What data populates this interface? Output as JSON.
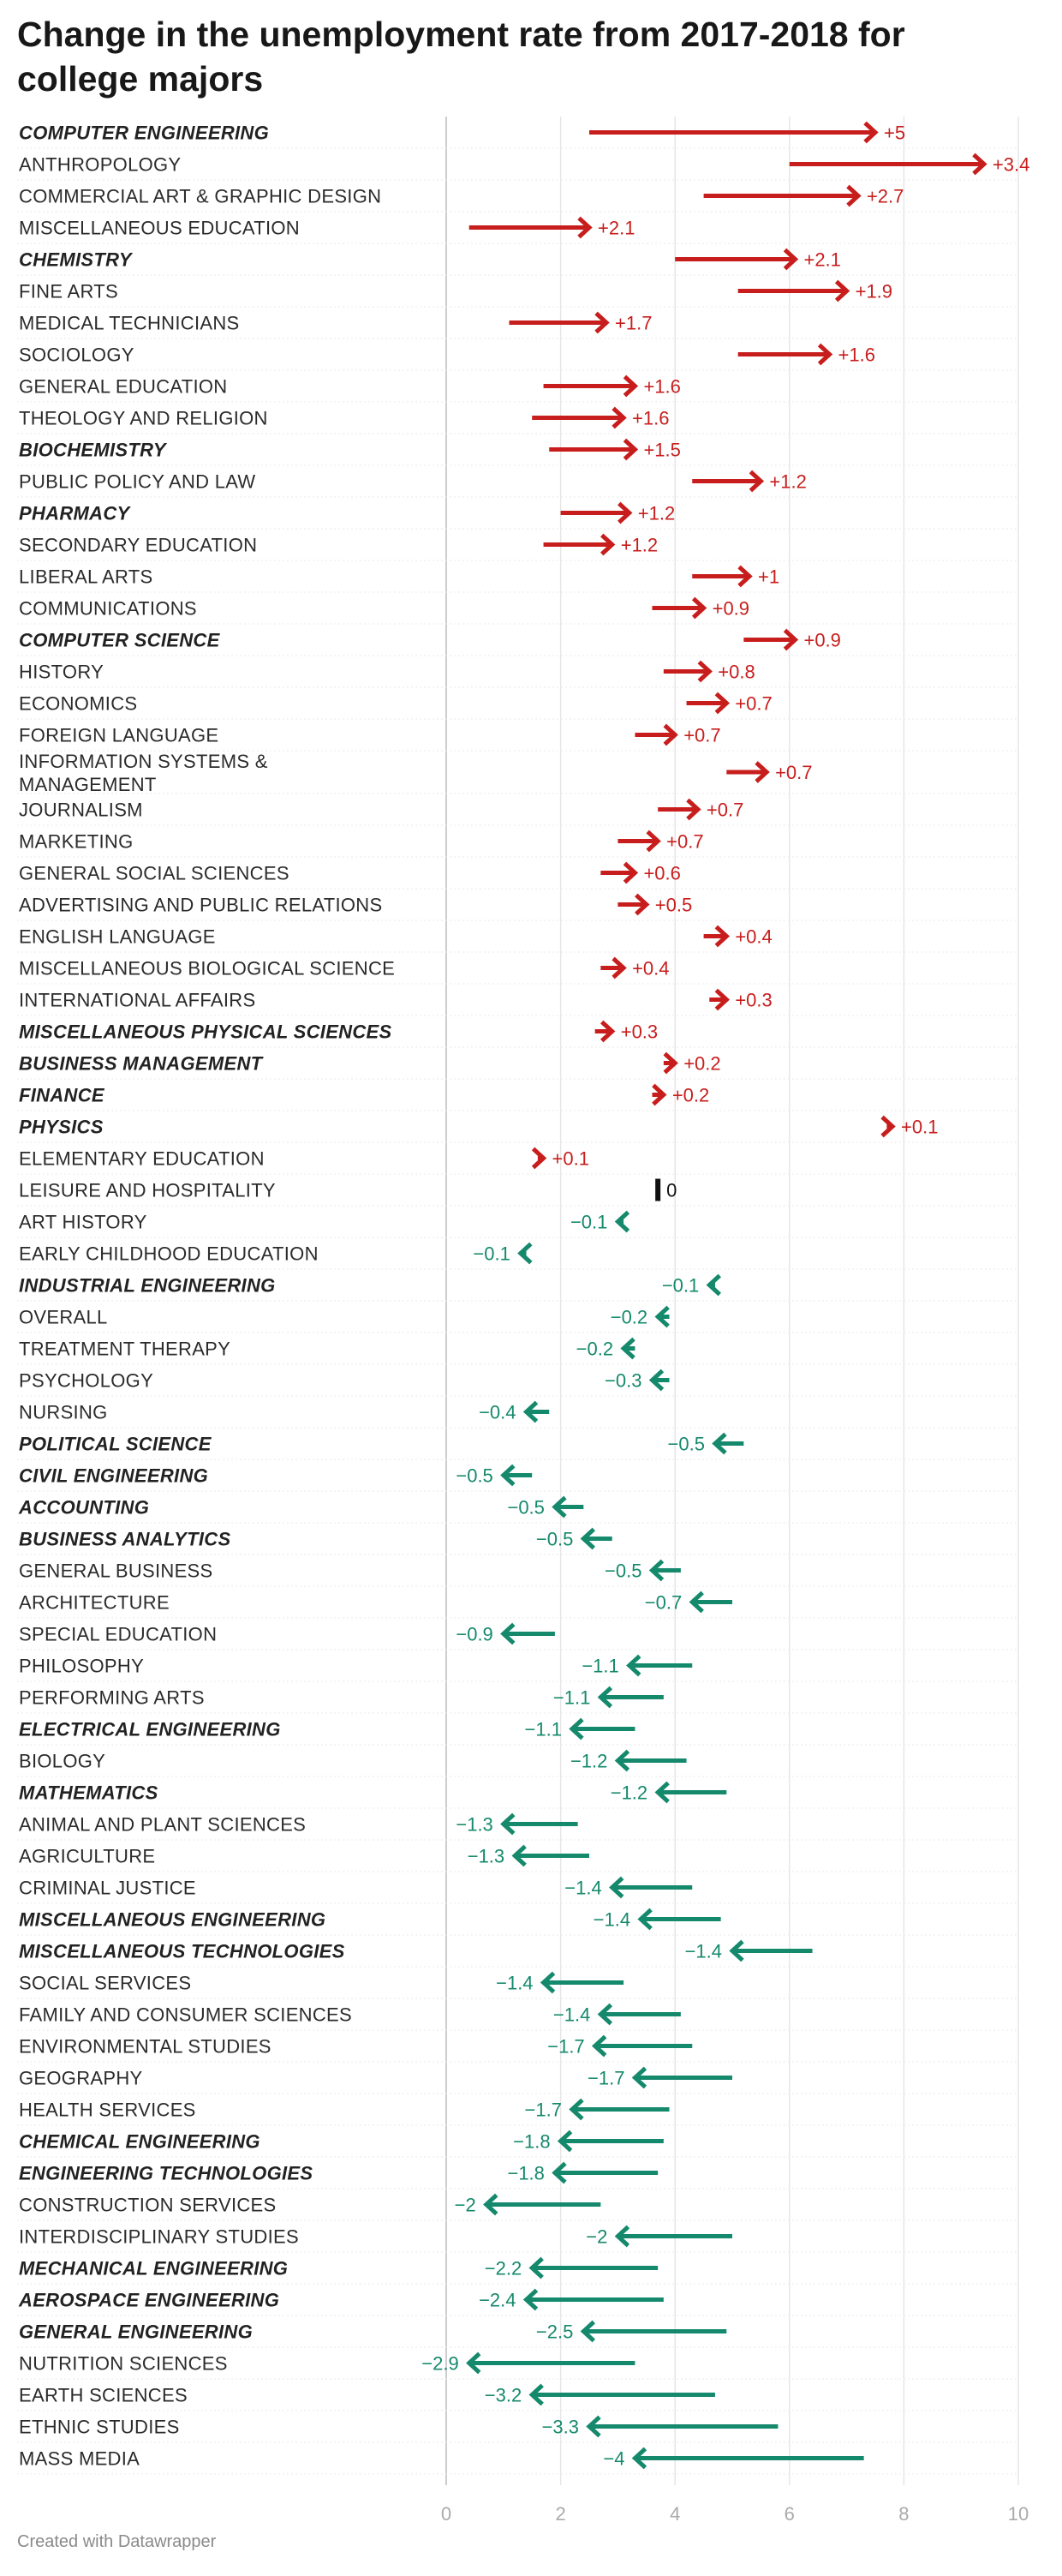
{
  "title": "Change in the unemployment rate from 2017-2018 for college majors",
  "footer": "Created with Datawrapper",
  "colors": {
    "increase": "#c71e1d",
    "decrease": "#15896c",
    "zero": "#111111",
    "grid": "#e6e6e6",
    "axis": "#cccccc"
  },
  "chart_data": {
    "type": "arrow",
    "title": "Change in the unemployment rate from 2017-2018 for college majors",
    "xlim": [
      0,
      10
    ],
    "xticks": [
      "0",
      "2",
      "4",
      "6",
      "8",
      "10"
    ],
    "rows": [
      {
        "label": "COMPUTER ENGINEERING",
        "highlight": true,
        "from": 2.5,
        "to": 7.5,
        "change": "+5"
      },
      {
        "label": "ANTHROPOLOGY",
        "highlight": false,
        "from": 6.0,
        "to": 9.4,
        "change": "+3.4"
      },
      {
        "label": "COMMERCIAL ART & GRAPHIC DESIGN",
        "highlight": false,
        "from": 4.5,
        "to": 7.2,
        "change": "+2.7"
      },
      {
        "label": "MISCELLANEOUS EDUCATION",
        "highlight": false,
        "from": 0.4,
        "to": 2.5,
        "change": "+2.1"
      },
      {
        "label": "CHEMISTRY",
        "highlight": true,
        "from": 4.0,
        "to": 6.1,
        "change": "+2.1"
      },
      {
        "label": "FINE ARTS",
        "highlight": false,
        "from": 5.1,
        "to": 7.0,
        "change": "+1.9"
      },
      {
        "label": "MEDICAL TECHNICIANS",
        "highlight": false,
        "from": 1.1,
        "to": 2.8,
        "change": "+1.7"
      },
      {
        "label": "SOCIOLOGY",
        "highlight": false,
        "from": 5.1,
        "to": 6.7,
        "change": "+1.6"
      },
      {
        "label": "GENERAL EDUCATION",
        "highlight": false,
        "from": 1.7,
        "to": 3.3,
        "change": "+1.6"
      },
      {
        "label": "THEOLOGY AND RELIGION",
        "highlight": false,
        "from": 1.5,
        "to": 3.1,
        "change": "+1.6"
      },
      {
        "label": "BIOCHEMISTRY",
        "highlight": true,
        "from": 1.8,
        "to": 3.3,
        "change": "+1.5"
      },
      {
        "label": "PUBLIC POLICY AND LAW",
        "highlight": false,
        "from": 4.3,
        "to": 5.5,
        "change": "+1.2"
      },
      {
        "label": "PHARMACY",
        "highlight": true,
        "from": 2.0,
        "to": 3.2,
        "change": "+1.2"
      },
      {
        "label": "SECONDARY EDUCATION",
        "highlight": false,
        "from": 1.7,
        "to": 2.9,
        "change": "+1.2"
      },
      {
        "label": "LIBERAL ARTS",
        "highlight": false,
        "from": 4.3,
        "to": 5.3,
        "change": "+1"
      },
      {
        "label": "COMMUNICATIONS",
        "highlight": false,
        "from": 3.6,
        "to": 4.5,
        "change": "+0.9"
      },
      {
        "label": "COMPUTER SCIENCE",
        "highlight": true,
        "from": 5.2,
        "to": 6.1,
        "change": "+0.9"
      },
      {
        "label": "HISTORY",
        "highlight": false,
        "from": 3.8,
        "to": 4.6,
        "change": "+0.8"
      },
      {
        "label": "ECONOMICS",
        "highlight": false,
        "from": 4.2,
        "to": 4.9,
        "change": "+0.7"
      },
      {
        "label": "FOREIGN LANGUAGE",
        "highlight": false,
        "from": 3.3,
        "to": 4.0,
        "change": "+0.7"
      },
      {
        "label": "INFORMATION SYSTEMS & MANAGEMENT",
        "highlight": false,
        "from": 4.9,
        "to": 5.6,
        "change": "+0.7"
      },
      {
        "label": "JOURNALISM",
        "highlight": false,
        "from": 3.7,
        "to": 4.4,
        "change": "+0.7"
      },
      {
        "label": "MARKETING",
        "highlight": false,
        "from": 3.0,
        "to": 3.7,
        "change": "+0.7"
      },
      {
        "label": "GENERAL SOCIAL SCIENCES",
        "highlight": false,
        "from": 2.7,
        "to": 3.3,
        "change": "+0.6"
      },
      {
        "label": "ADVERTISING AND PUBLIC RELATIONS",
        "highlight": false,
        "from": 3.0,
        "to": 3.5,
        "change": "+0.5"
      },
      {
        "label": "ENGLISH LANGUAGE",
        "highlight": false,
        "from": 4.5,
        "to": 4.9,
        "change": "+0.4"
      },
      {
        "label": "MISCELLANEOUS BIOLOGICAL SCIENCE",
        "highlight": false,
        "from": 2.7,
        "to": 3.1,
        "change": "+0.4"
      },
      {
        "label": "INTERNATIONAL AFFAIRS",
        "highlight": false,
        "from": 4.6,
        "to": 4.9,
        "change": "+0.3"
      },
      {
        "label": "MISCELLANEOUS PHYSICAL SCIENCES",
        "highlight": true,
        "from": 2.6,
        "to": 2.9,
        "change": "+0.3"
      },
      {
        "label": "BUSINESS MANAGEMENT",
        "highlight": true,
        "from": 3.8,
        "to": 4.0,
        "change": "+0.2"
      },
      {
        "label": "FINANCE",
        "highlight": true,
        "from": 3.6,
        "to": 3.8,
        "change": "+0.2"
      },
      {
        "label": "PHYSICS",
        "highlight": true,
        "from": 7.7,
        "to": 7.8,
        "change": "+0.1"
      },
      {
        "label": "ELEMENTARY EDUCATION",
        "highlight": false,
        "from": 1.6,
        "to": 1.7,
        "change": "+0.1"
      },
      {
        "label": "LEISURE AND HOSPITALITY",
        "highlight": false,
        "from": 3.7,
        "to": 3.7,
        "change": "0"
      },
      {
        "label": "ART HISTORY",
        "highlight": false,
        "from": 3.1,
        "to": 3.0,
        "change": "−0.1"
      },
      {
        "label": "EARLY CHILDHOOD EDUCATION",
        "highlight": false,
        "from": 1.4,
        "to": 1.3,
        "change": "−0.1"
      },
      {
        "label": "INDUSTRIAL ENGINEERING",
        "highlight": true,
        "from": 4.7,
        "to": 4.6,
        "change": "−0.1"
      },
      {
        "label": "OVERALL",
        "highlight": false,
        "from": 3.9,
        "to": 3.7,
        "change": "−0.2"
      },
      {
        "label": "TREATMENT THERAPY",
        "highlight": false,
        "from": 3.3,
        "to": 3.1,
        "change": "−0.2"
      },
      {
        "label": "PSYCHOLOGY",
        "highlight": false,
        "from": 3.9,
        "to": 3.6,
        "change": "−0.3"
      },
      {
        "label": "NURSING",
        "highlight": false,
        "from": 1.8,
        "to": 1.4,
        "change": "−0.4"
      },
      {
        "label": "POLITICAL SCIENCE",
        "highlight": true,
        "from": 5.2,
        "to": 4.7,
        "change": "−0.5"
      },
      {
        "label": "CIVIL ENGINEERING",
        "highlight": true,
        "from": 1.5,
        "to": 1.0,
        "change": "−0.5"
      },
      {
        "label": "ACCOUNTING",
        "highlight": true,
        "from": 2.4,
        "to": 1.9,
        "change": "−0.5"
      },
      {
        "label": "BUSINESS ANALYTICS",
        "highlight": true,
        "from": 2.9,
        "to": 2.4,
        "change": "−0.5"
      },
      {
        "label": "GENERAL BUSINESS",
        "highlight": false,
        "from": 4.1,
        "to": 3.6,
        "change": "−0.5"
      },
      {
        "label": "ARCHITECTURE",
        "highlight": false,
        "from": 5.0,
        "to": 4.3,
        "change": "−0.7"
      },
      {
        "label": "SPECIAL EDUCATION",
        "highlight": false,
        "from": 1.9,
        "to": 1.0,
        "change": "−0.9"
      },
      {
        "label": "PHILOSOPHY",
        "highlight": false,
        "from": 4.3,
        "to": 3.2,
        "change": "−1.1"
      },
      {
        "label": "PERFORMING ARTS",
        "highlight": false,
        "from": 3.8,
        "to": 2.7,
        "change": "−1.1"
      },
      {
        "label": "ELECTRICAL ENGINEERING",
        "highlight": true,
        "from": 3.3,
        "to": 2.2,
        "change": "−1.1"
      },
      {
        "label": "BIOLOGY",
        "highlight": false,
        "from": 4.2,
        "to": 3.0,
        "change": "−1.2"
      },
      {
        "label": "MATHEMATICS",
        "highlight": true,
        "from": 4.9,
        "to": 3.7,
        "change": "−1.2"
      },
      {
        "label": "ANIMAL AND PLANT SCIENCES",
        "highlight": false,
        "from": 2.3,
        "to": 1.0,
        "change": "−1.3"
      },
      {
        "label": "AGRICULTURE",
        "highlight": false,
        "from": 2.5,
        "to": 1.2,
        "change": "−1.3"
      },
      {
        "label": "CRIMINAL JUSTICE",
        "highlight": false,
        "from": 4.3,
        "to": 2.9,
        "change": "−1.4"
      },
      {
        "label": "MISCELLANEOUS ENGINEERING",
        "highlight": true,
        "from": 4.8,
        "to": 3.4,
        "change": "−1.4"
      },
      {
        "label": "MISCELLANEOUS TECHNOLOGIES",
        "highlight": true,
        "from": 6.4,
        "to": 5.0,
        "change": "−1.4"
      },
      {
        "label": "SOCIAL SERVICES",
        "highlight": false,
        "from": 3.1,
        "to": 1.7,
        "change": "−1.4"
      },
      {
        "label": "FAMILY AND CONSUMER SCIENCES",
        "highlight": false,
        "from": 4.1,
        "to": 2.7,
        "change": "−1.4"
      },
      {
        "label": "ENVIRONMENTAL STUDIES",
        "highlight": false,
        "from": 4.3,
        "to": 2.6,
        "change": "−1.7"
      },
      {
        "label": "GEOGRAPHY",
        "highlight": false,
        "from": 5.0,
        "to": 3.3,
        "change": "−1.7"
      },
      {
        "label": "HEALTH SERVICES",
        "highlight": false,
        "from": 3.9,
        "to": 2.2,
        "change": "−1.7"
      },
      {
        "label": "CHEMICAL ENGINEERING",
        "highlight": true,
        "from": 3.8,
        "to": 2.0,
        "change": "−1.8"
      },
      {
        "label": "ENGINEERING TECHNOLOGIES",
        "highlight": true,
        "from": 3.7,
        "to": 1.9,
        "change": "−1.8"
      },
      {
        "label": "CONSTRUCTION SERVICES",
        "highlight": false,
        "from": 2.7,
        "to": 0.7,
        "change": "−2"
      },
      {
        "label": "INTERDISCIPLINARY STUDIES",
        "highlight": false,
        "from": 5.0,
        "to": 3.0,
        "change": "−2"
      },
      {
        "label": "MECHANICAL ENGINEERING",
        "highlight": true,
        "from": 3.7,
        "to": 1.5,
        "change": "−2.2"
      },
      {
        "label": "AEROSPACE ENGINEERING",
        "highlight": true,
        "from": 3.8,
        "to": 1.4,
        "change": "−2.4"
      },
      {
        "label": "GENERAL ENGINEERING",
        "highlight": true,
        "from": 4.9,
        "to": 2.4,
        "change": "−2.5"
      },
      {
        "label": "NUTRITION SCIENCES",
        "highlight": false,
        "from": 3.3,
        "to": 0.4,
        "change": "−2.9"
      },
      {
        "label": "EARTH SCIENCES",
        "highlight": false,
        "from": 4.7,
        "to": 1.5,
        "change": "−3.2"
      },
      {
        "label": "ETHNIC STUDIES",
        "highlight": false,
        "from": 5.8,
        "to": 2.5,
        "change": "−3.3"
      },
      {
        "label": "MASS MEDIA",
        "highlight": false,
        "from": 7.3,
        "to": 3.3,
        "change": "−4"
      }
    ]
  }
}
